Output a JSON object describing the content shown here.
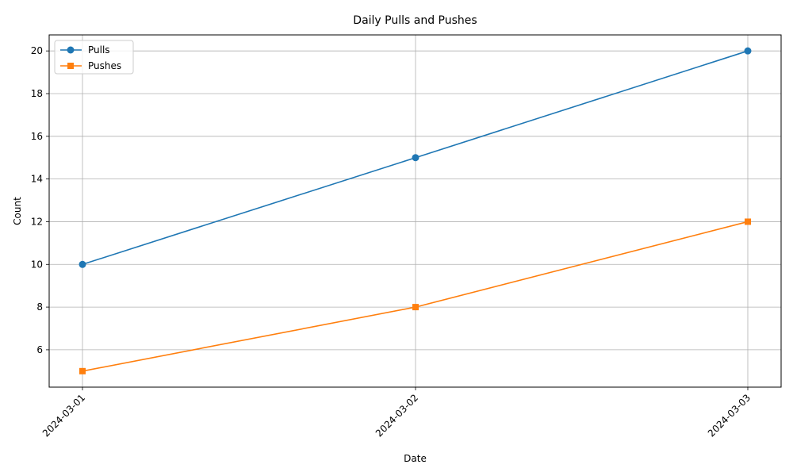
{
  "chart_data": {
    "type": "line",
    "title": "Daily Pulls and Pushes",
    "xlabel": "Date",
    "ylabel": "Count",
    "categories": [
      "2024-03-01",
      "2024-03-02",
      "2024-03-03"
    ],
    "yticks": [
      6,
      8,
      10,
      12,
      14,
      16,
      18,
      20
    ],
    "ylim": [
      4.25,
      20.75
    ],
    "grid": true,
    "legend_position": "top-left",
    "series": [
      {
        "name": "Pulls",
        "values": [
          10,
          15,
          20
        ],
        "color": "#1f77b4",
        "marker": "circle"
      },
      {
        "name": "Pushes",
        "values": [
          5,
          8,
          12
        ],
        "color": "#ff7f0e",
        "marker": "square"
      }
    ]
  }
}
